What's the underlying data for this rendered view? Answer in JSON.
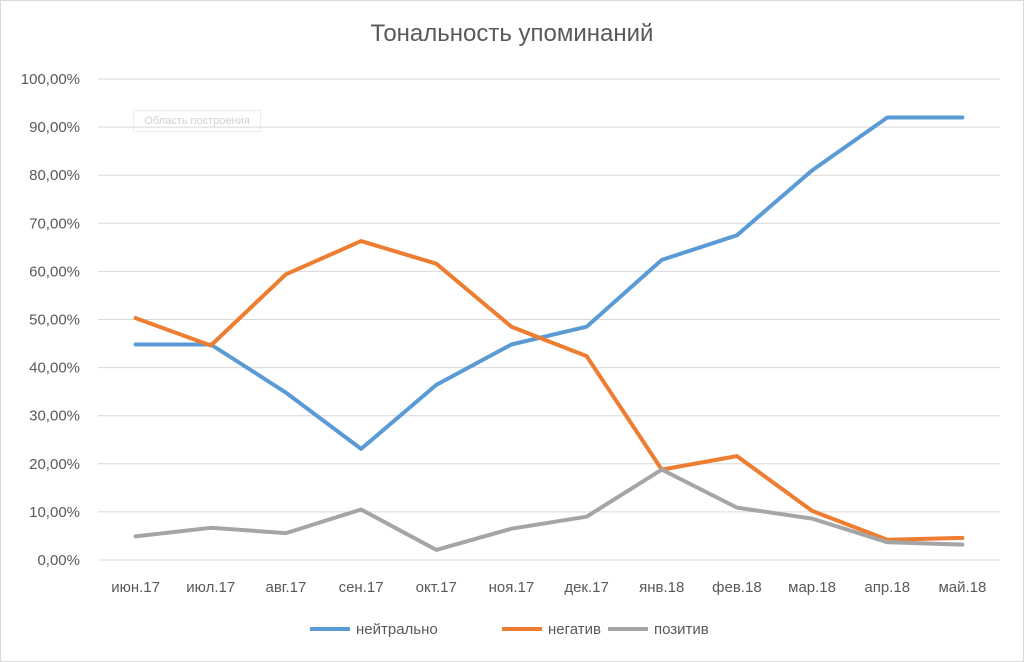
{
  "chart_data": {
    "type": "line",
    "title": "Тональность упоминаний",
    "plot_area_label": "Область построения",
    "categories": [
      "июн.17",
      "июл.17",
      "авг.17",
      "сен.17",
      "окт.17",
      "ноя.17",
      "дек.17",
      "янв.18",
      "фев.18",
      "мар.18",
      "апр.18",
      "май.18"
    ],
    "ylim": [
      0,
      100
    ],
    "yticks": [
      "0,00%",
      "10,00%",
      "20,00%",
      "30,00%",
      "40,00%",
      "50,00%",
      "60,00%",
      "70,00%",
      "80,00%",
      "90,00%",
      "100,00%"
    ],
    "grid": true,
    "legend_position": "bottom",
    "series": [
      {
        "name": "нейтрально",
        "color": "#5b9bd5",
        "values": [
          44.8,
          44.8,
          34.8,
          23.1,
          36.4,
          44.8,
          48.5,
          62.4,
          67.5,
          81.0,
          92.0,
          92.0
        ]
      },
      {
        "name": "негатив",
        "color": "#ed7d31",
        "values": [
          50.3,
          44.6,
          59.4,
          66.3,
          61.6,
          48.5,
          42.4,
          18.8,
          21.6,
          10.2,
          4.2,
          4.6
        ]
      },
      {
        "name": "позитив",
        "color": "#a5a5a5",
        "values": [
          4.9,
          6.7,
          5.6,
          10.5,
          2.1,
          6.5,
          9.0,
          18.8,
          10.9,
          8.6,
          3.7,
          3.2
        ]
      }
    ]
  }
}
